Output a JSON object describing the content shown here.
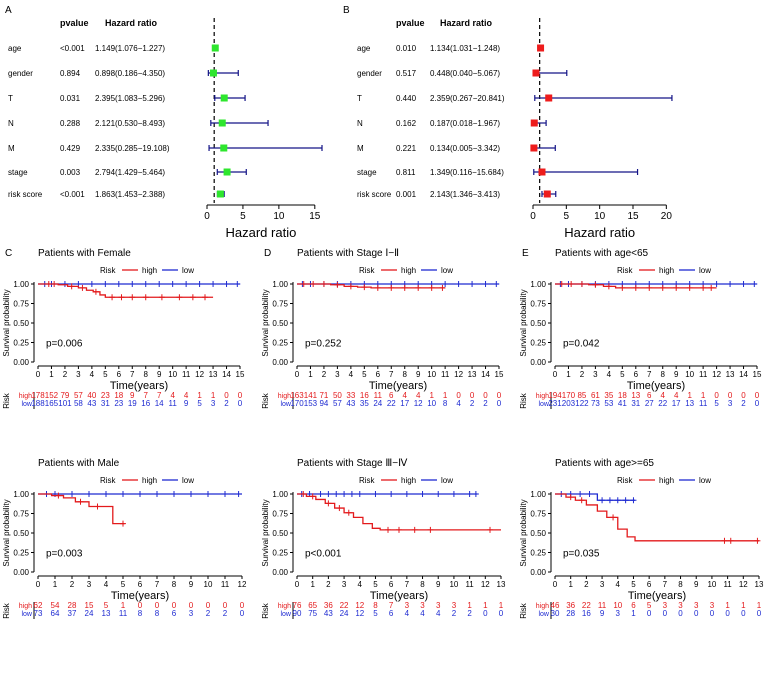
{
  "colors": {
    "high": "#e31a1c",
    "low": "#1f2bd1",
    "forest_a": "#2ee62e",
    "forest_b": "#ee1c1c",
    "ci_line": "#141487",
    "axis": "#000000"
  },
  "chart_data": [
    {
      "type": "forest",
      "panel": "A",
      "headers": {
        "pvalue": "pvalue",
        "hr": "Hazard ratio"
      },
      "rows": [
        {
          "label": "age",
          "pvalue": "<0.001",
          "hr_text": "1.149(1.076−1.227)",
          "hr": 1.149,
          "lo": 1.076,
          "hi": 1.227
        },
        {
          "label": "gender",
          "pvalue": "0.894",
          "hr_text": "0.898(0.186−4.350)",
          "hr": 0.898,
          "lo": 0.186,
          "hi": 4.35
        },
        {
          "label": "T",
          "pvalue": "0.031",
          "hr_text": "2.395(1.083−5.296)",
          "hr": 2.395,
          "lo": 1.083,
          "hi": 5.296
        },
        {
          "label": "N",
          "pvalue": "0.288",
          "hr_text": "2.121(0.530−8.493)",
          "hr": 2.121,
          "lo": 0.53,
          "hi": 8.493
        },
        {
          "label": "M",
          "pvalue": "0.429",
          "hr_text": "2.335(0.285−19.108)",
          "hr": 2.335,
          "lo": 0.285,
          "hi": 19.108
        },
        {
          "label": "stage",
          "pvalue": "0.003",
          "hr_text": "2.794(1.429−5.464)",
          "hr": 2.794,
          "lo": 1.429,
          "hi": 5.464
        },
        {
          "label": "risk score",
          "pvalue": "<0.001",
          "hr_text": "1.863(1.453−2.388)",
          "hr": 1.863,
          "lo": 1.453,
          "hi": 2.388
        }
      ],
      "xticks": [
        0,
        5,
        10,
        15
      ],
      "xlim": [
        0,
        16
      ],
      "xlabel": "Hazard ratio",
      "ref_line": 1
    },
    {
      "type": "forest",
      "panel": "B",
      "headers": {
        "pvalue": "pvalue",
        "hr": "Hazard ratio"
      },
      "rows": [
        {
          "label": "age",
          "pvalue": "0.010",
          "hr_text": "1.134(1.031−1.248)",
          "hr": 1.134,
          "lo": 1.031,
          "hi": 1.248
        },
        {
          "label": "gender",
          "pvalue": "0.517",
          "hr_text": "0.448(0.040−5.067)",
          "hr": 0.448,
          "lo": 0.04,
          "hi": 5.067
        },
        {
          "label": "T",
          "pvalue": "0.440",
          "hr_text": "2.359(0.267−20.841)",
          "hr": 2.359,
          "lo": 0.267,
          "hi": 20.841
        },
        {
          "label": "N",
          "pvalue": "0.162",
          "hr_text": "0.187(0.018−1.967)",
          "hr": 0.187,
          "lo": 0.018,
          "hi": 1.967
        },
        {
          "label": "M",
          "pvalue": "0.221",
          "hr_text": "0.134(0.005−3.342)",
          "hr": 0.134,
          "lo": 0.005,
          "hi": 3.342
        },
        {
          "label": "stage",
          "pvalue": "0.811",
          "hr_text": "1.349(0.116−15.684)",
          "hr": 1.349,
          "lo": 0.116,
          "hi": 15.684
        },
        {
          "label": "risk score",
          "pvalue": "0.001",
          "hr_text": "2.143(1.346−3.413)",
          "hr": 2.143,
          "lo": 1.346,
          "hi": 3.413
        }
      ],
      "xticks": [
        0,
        5,
        10,
        15,
        20
      ],
      "xlim": [
        0,
        21
      ],
      "xlabel": "Hazard ratio",
      "ref_line": 1
    },
    {
      "type": "km",
      "panel": "C",
      "title": "Patients with Female",
      "pvalue": "p=0.006",
      "xmax": 15,
      "high": [
        [
          0,
          1
        ],
        [
          1.5,
          0.99
        ],
        [
          2.2,
          0.97
        ],
        [
          3,
          0.95
        ],
        [
          3.6,
          0.92
        ],
        [
          4.1,
          0.9
        ],
        [
          4.6,
          0.86
        ],
        [
          5,
          0.83
        ],
        [
          13,
          0.83
        ]
      ],
      "high_censor": [
        0.8,
        1.2,
        2.5,
        3.3,
        4.3,
        5.5,
        6.2,
        7,
        8,
        9.2,
        10.5,
        11.5,
        12.4
      ],
      "low": [
        [
          0,
          1
        ],
        [
          15,
          1
        ]
      ],
      "low_censor": [
        0.5,
        1,
        2,
        3,
        4,
        5,
        6,
        7,
        8,
        9,
        10,
        11,
        12,
        13,
        14,
        14.8
      ],
      "risk_high": [
        "178",
        "152",
        "79",
        "57",
        "40",
        "23",
        "18",
        "9",
        "7",
        "7",
        "4",
        "4",
        "1",
        "1",
        "0",
        "0"
      ],
      "risk_low": [
        "188",
        "165",
        "101",
        "58",
        "43",
        "31",
        "23",
        "19",
        "16",
        "14",
        "11",
        "9",
        "5",
        "3",
        "2",
        "0"
      ]
    },
    {
      "type": "km",
      "panel": "D",
      "title": "Patients with Stage Ⅰ−Ⅱ",
      "pvalue": "p=0.252",
      "xmax": 15,
      "high": [
        [
          0,
          1
        ],
        [
          2.5,
          0.99
        ],
        [
          3.5,
          0.97
        ],
        [
          4.5,
          0.96
        ],
        [
          5.5,
          0.95
        ],
        [
          11,
          0.95
        ]
      ],
      "high_censor": [
        0.5,
        1.2,
        2,
        3,
        4,
        5,
        6,
        7,
        8,
        9,
        10,
        10.8
      ],
      "low": [
        [
          0,
          1
        ],
        [
          15,
          1
        ]
      ],
      "low_censor": [
        0.4,
        1,
        2,
        3,
        4,
        5,
        6,
        7,
        8,
        9,
        10,
        11,
        12,
        13,
        14,
        14.8
      ],
      "risk_high": [
        "163",
        "141",
        "71",
        "50",
        "33",
        "16",
        "11",
        "6",
        "4",
        "4",
        "1",
        "1",
        "0",
        "0",
        "0",
        "0"
      ],
      "risk_low": [
        "170",
        "153",
        "94",
        "57",
        "43",
        "35",
        "24",
        "22",
        "17",
        "12",
        "10",
        "8",
        "4",
        "2",
        "2",
        "0"
      ]
    },
    {
      "type": "km",
      "panel": "E",
      "title": "Patients with age<65",
      "pvalue": "p=0.042",
      "xmax": 15,
      "high": [
        [
          0,
          1
        ],
        [
          2.5,
          0.99
        ],
        [
          3.6,
          0.97
        ],
        [
          4.5,
          0.95
        ],
        [
          5.5,
          0.95
        ],
        [
          12,
          0.95
        ]
      ],
      "high_censor": [
        0.5,
        1.2,
        2,
        3,
        4,
        5,
        6,
        7,
        8,
        9,
        10,
        11,
        11.6
      ],
      "low": [
        [
          0,
          1
        ],
        [
          15,
          1
        ]
      ],
      "low_censor": [
        0.4,
        1,
        2,
        3,
        4,
        5,
        6,
        7,
        8,
        9,
        10,
        11,
        12,
        13,
        14,
        14.8
      ],
      "risk_high": [
        "194",
        "170",
        "85",
        "61",
        "35",
        "18",
        "13",
        "6",
        "4",
        "4",
        "1",
        "1",
        "0",
        "0",
        "0",
        "0"
      ],
      "risk_low": [
        "231",
        "203",
        "122",
        "73",
        "53",
        "41",
        "31",
        "27",
        "22",
        "17",
        "13",
        "11",
        "5",
        "3",
        "2",
        "0"
      ]
    },
    {
      "type": "km",
      "panel": "",
      "title": "Patients with Male",
      "pvalue": "p=0.003",
      "xmax": 12,
      "high": [
        [
          0,
          1
        ],
        [
          0.8,
          0.98
        ],
        [
          1.5,
          0.95
        ],
        [
          2.2,
          0.9
        ],
        [
          3,
          0.84
        ],
        [
          4.4,
          0.62
        ],
        [
          5.1,
          0.62
        ]
      ],
      "high_censor": [
        1.2,
        2.5,
        3.5,
        5
      ],
      "low": [
        [
          0,
          1
        ],
        [
          12,
          1
        ]
      ],
      "low_censor": [
        0.5,
        1,
        2,
        3,
        4,
        5,
        6,
        7,
        8,
        9,
        10,
        11,
        11.8
      ],
      "risk_high": [
        "62",
        "54",
        "28",
        "15",
        "5",
        "1",
        "0",
        "0",
        "0",
        "0",
        "0",
        "0",
        "0"
      ],
      "risk_low": [
        "73",
        "64",
        "37",
        "24",
        "13",
        "11",
        "8",
        "8",
        "6",
        "3",
        "2",
        "2",
        "0"
      ]
    },
    {
      "type": "km",
      "panel": "",
      "title": "Patients with Stage Ⅲ−Ⅳ",
      "pvalue": "p<0.001",
      "xmax": 13,
      "high": [
        [
          0,
          1
        ],
        [
          0.6,
          0.97
        ],
        [
          1.2,
          0.93
        ],
        [
          1.8,
          0.88
        ],
        [
          2.4,
          0.82
        ],
        [
          3,
          0.76
        ],
        [
          3.6,
          0.7
        ],
        [
          4.2,
          0.62
        ],
        [
          4.8,
          0.56
        ],
        [
          5.3,
          0.54
        ],
        [
          13,
          0.54
        ]
      ],
      "high_censor": [
        0.4,
        1,
        2,
        2.7,
        3.3,
        5.8,
        6.5,
        7.5,
        8.5,
        12.3
      ],
      "low": [
        [
          0,
          1
        ],
        [
          11.5,
          1
        ]
      ],
      "low_censor": [
        0.3,
        0.8,
        1.5,
        2,
        2.5,
        3,
        3.5,
        4,
        5,
        6,
        7,
        8,
        9,
        10,
        11,
        11.4
      ],
      "risk_high": [
        "76",
        "65",
        "36",
        "22",
        "12",
        "8",
        "7",
        "3",
        "3",
        "3",
        "3",
        "1",
        "1",
        "1"
      ],
      "risk_low": [
        "90",
        "75",
        "43",
        "24",
        "12",
        "5",
        "6",
        "4",
        "4",
        "4",
        "2",
        "2",
        "0",
        "0"
      ]
    },
    {
      "type": "km",
      "panel": "",
      "title": "Patients with age>=65",
      "pvalue": "p=0.035",
      "xmax": 13,
      "high": [
        [
          0,
          1
        ],
        [
          0.7,
          0.96
        ],
        [
          1.3,
          0.92
        ],
        [
          2,
          0.86
        ],
        [
          2.7,
          0.78
        ],
        [
          3.3,
          0.7
        ],
        [
          4,
          0.55
        ],
        [
          4.6,
          0.45
        ],
        [
          5.1,
          0.4
        ],
        [
          13,
          0.4
        ]
      ],
      "high_censor": [
        1,
        1.7,
        3.7,
        10.8,
        11.2,
        12.9
      ],
      "low": [
        [
          0,
          1
        ],
        [
          2.7,
          1
        ],
        [
          2.7,
          0.92
        ],
        [
          5.1,
          0.92
        ]
      ],
      "low_censor": [
        0.4,
        1,
        1.6,
        2.2,
        3,
        3.5,
        4,
        4.5,
        5
      ],
      "risk_high": [
        "46",
        "36",
        "22",
        "11",
        "10",
        "6",
        "5",
        "3",
        "3",
        "3",
        "3",
        "1",
        "1",
        "1"
      ],
      "risk_low": [
        "30",
        "28",
        "16",
        "9",
        "3",
        "1",
        "0",
        "0",
        "0",
        "0",
        "0",
        "0",
        "0",
        "0"
      ]
    }
  ],
  "labels": {
    "risk_legend_title": "Risk",
    "high": "high",
    "low": "low",
    "ylabel": "Survival probability",
    "xlabel": "Time(years)",
    "risk_row_title": "Risk",
    "yticks": [
      "0.00",
      "0.25",
      "0.50",
      "0.75",
      "1.00"
    ],
    "panel_a": "A",
    "panel_b": "B"
  }
}
